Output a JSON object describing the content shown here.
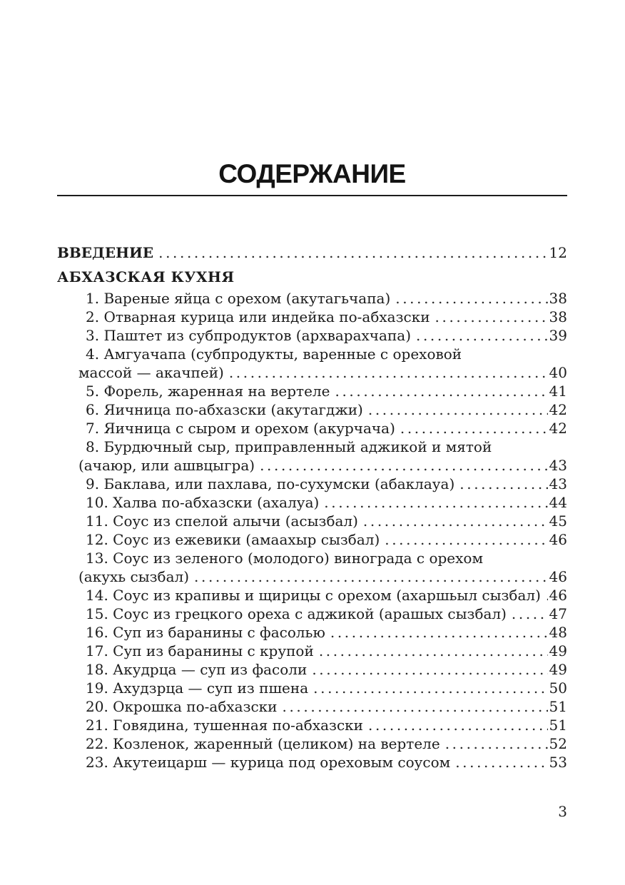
{
  "toc": {
    "title": "СОДЕРЖАНИЕ",
    "intro": {
      "label": "ВВЕДЕНИЕ",
      "page": "12"
    },
    "section": "АБХАЗСКАЯ КУХНЯ",
    "items": [
      {
        "line1": "1. Вареные яйца с орехом (акутагьчапа)",
        "page": "38"
      },
      {
        "line1": "2. Отварная курица или индейка по-абхазски",
        "page": "38"
      },
      {
        "line1": "3. Паштет из субпродуктов (архварахчапа)",
        "page": "39"
      },
      {
        "line1": "4. Амгуачапа (субпродукты, варенные с ореховой",
        "line2": "массой — акачпей)",
        "page": "40"
      },
      {
        "line1": "5. Форель, жаренная на вертеле",
        "page": "41"
      },
      {
        "line1": "6. Яичница по-абхазски (акутагджи)",
        "page": "42"
      },
      {
        "line1": "7. Яичница с сыром и орехом (акурчача)",
        "page": "42"
      },
      {
        "line1": "8. Бурдючный сыр, приправленный аджикой и мятой",
        "line2": "(ачаюр, или ашвцыгра)",
        "page": "43"
      },
      {
        "line1": "9. Баклава, или пахлава, по-сухумски (абаклауа)",
        "page": "43"
      },
      {
        "line1": "10. Халва по-абхазски (ахалуа)",
        "page": "44"
      },
      {
        "line1": "11. Соус из спелой алычи (асызбал)",
        "page": "45"
      },
      {
        "line1": "12. Соус из ежевики (амаахыр сызбал)",
        "page": "46"
      },
      {
        "line1": "13. Соус из зеленого (молодого) винограда с орехом",
        "line2": "(акухь сызбал)",
        "page": "46"
      },
      {
        "line1": "14. Соус из крапивы и щирицы с орехом (ахаршьыл сызбал)",
        "page": "46"
      },
      {
        "line1": "15. Соус из грецкого ореха с аджикой (арашых сызбал)",
        "page": "47"
      },
      {
        "line1": "16. Суп из баранины с фасолью",
        "page": "48"
      },
      {
        "line1": "17. Суп из баранины с крупой",
        "page": "49"
      },
      {
        "line1": "18. Акудрца — суп из фасоли",
        "page": "49"
      },
      {
        "line1": "19. Ахудзрца — суп из пшена",
        "page": "50"
      },
      {
        "line1": "20. Окрошка по-абхазски",
        "page": "51"
      },
      {
        "line1": "21. Говядина, тушенная по-абхазски",
        "page": "51"
      },
      {
        "line1": "22. Козленок, жаренный (целиком) на вертеле",
        "page": "52"
      },
      {
        "line1": "23. Акутеицарш — курица под ореховым соусом",
        "page": "53"
      }
    ],
    "page_number": "3"
  }
}
